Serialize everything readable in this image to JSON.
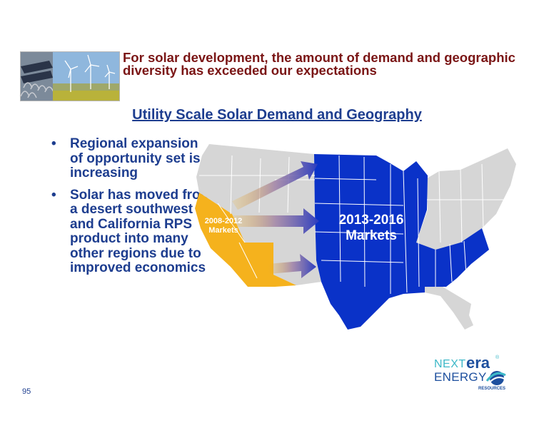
{
  "slide": {
    "title": "For solar development, the amount of demand and geographic diversity has exceeded our expectations",
    "subtitle": "Utility Scale Solar Demand and Geography",
    "page_number": "95"
  },
  "bullets": [
    {
      "text": "Regional expansion of opportunity set is increasing"
    },
    {
      "text": "Solar has moved from a desert southwest and California RPS product into many other regions due to improved economics"
    }
  ],
  "map": {
    "label_early_line1": "2008-2012",
    "label_early_line2": "Markets",
    "label_late_line1": "2013-2016",
    "label_late_line2": "Markets",
    "colors": {
      "early_markets": "#f5b21d",
      "late_markets": "#0a32c8",
      "other_states": "#d6d6d6",
      "state_borders": "#ffffff"
    }
  },
  "logo": {
    "next": "NEXT",
    "era": "era",
    "trademark": "®",
    "energy": "ENERGY",
    "resources": "RESOURCES"
  },
  "icons": {
    "header_photo": "solar-panels-wind-turbines-photo",
    "bullet": "•"
  }
}
